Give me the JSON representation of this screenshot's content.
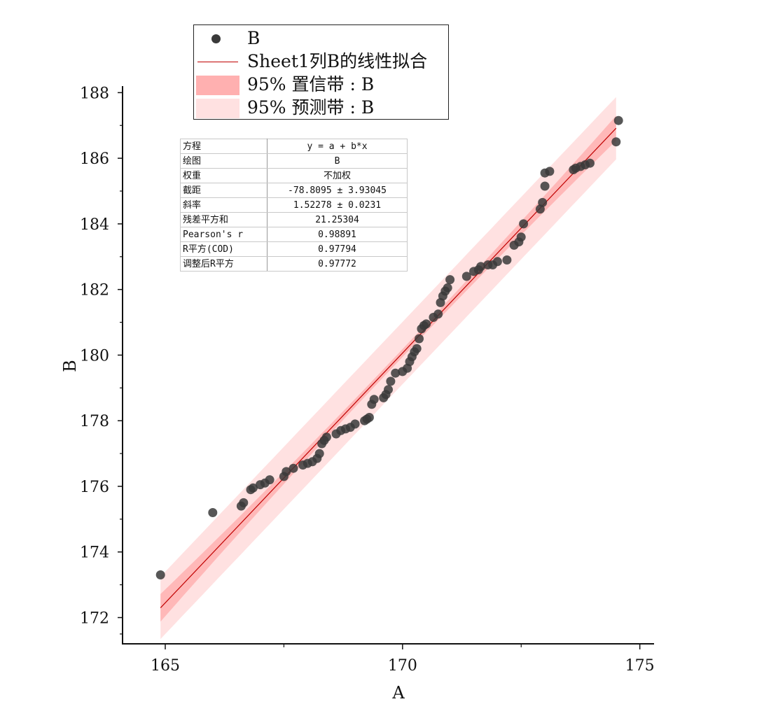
{
  "legend": {
    "items": [
      {
        "label": "B",
        "kind": "scatter",
        "color": "#3a3a3a"
      },
      {
        "label": "Sheet1列B的线性拟合",
        "kind": "line",
        "color": "#c00000"
      },
      {
        "label": "95% 置信带 : B",
        "kind": "band",
        "color": "#ffb0b0"
      },
      {
        "label": "95% 预测带 : B",
        "kind": "band",
        "color": "#ffe1e1"
      }
    ]
  },
  "stats_table": {
    "rows": [
      {
        "key": "方程",
        "value": "y = a + b*x"
      },
      {
        "key": "绘图",
        "value": "B"
      },
      {
        "key": "权重",
        "value": "不加权"
      },
      {
        "key": "截距",
        "value": "-78.8095 ± 3.93045"
      },
      {
        "key": "斜率",
        "value": "1.52278 ± 0.0231"
      },
      {
        "key": "残差平方和",
        "value": "21.25304"
      },
      {
        "key": "Pearson's r",
        "value": "0.98891"
      },
      {
        "key": "R平方(COD)",
        "value": "0.97794"
      },
      {
        "key": "调整后R平方",
        "value": "0.97772"
      }
    ]
  },
  "chart_data": {
    "type": "scatter",
    "xlabel": "A",
    "ylabel": "B",
    "xlim": [
      164.1,
      175.3
    ],
    "ylim": [
      171.2,
      188.2
    ],
    "xticks": [
      165,
      170,
      175
    ],
    "yticks": [
      172,
      174,
      176,
      178,
      180,
      182,
      184,
      186,
      188
    ],
    "fit": {
      "intercept": -78.8095,
      "slope": 1.52278,
      "x_range": [
        164.9,
        174.5
      ]
    },
    "confidence_band_halfwidth": {
      "start": 0.42,
      "mid": 0.12,
      "end": 0.38
    },
    "prediction_band_halfwidth": 0.95,
    "colors": {
      "points": "#3a3a3a",
      "fit": "#c00000",
      "conf": "#ffb0b0",
      "pred": "#ffe1e1"
    },
    "series": [
      {
        "name": "B",
        "points": [
          [
            164.9,
            173.3
          ],
          [
            166.0,
            175.2
          ],
          [
            166.6,
            175.4
          ],
          [
            166.65,
            175.5
          ],
          [
            166.8,
            175.9
          ],
          [
            166.85,
            175.95
          ],
          [
            167.0,
            176.05
          ],
          [
            167.1,
            176.1
          ],
          [
            167.2,
            176.2
          ],
          [
            167.5,
            176.3
          ],
          [
            167.55,
            176.45
          ],
          [
            167.7,
            176.55
          ],
          [
            167.9,
            176.65
          ],
          [
            168.0,
            176.7
          ],
          [
            168.1,
            176.75
          ],
          [
            168.2,
            176.85
          ],
          [
            168.25,
            177.0
          ],
          [
            168.3,
            177.3
          ],
          [
            168.35,
            177.4
          ],
          [
            168.4,
            177.5
          ],
          [
            168.6,
            177.6
          ],
          [
            168.7,
            177.7
          ],
          [
            168.8,
            177.75
          ],
          [
            168.9,
            177.8
          ],
          [
            169.0,
            177.9
          ],
          [
            169.2,
            178.0
          ],
          [
            169.25,
            178.05
          ],
          [
            169.3,
            178.1
          ],
          [
            169.35,
            178.5
          ],
          [
            169.4,
            178.65
          ],
          [
            169.6,
            178.7
          ],
          [
            169.65,
            178.8
          ],
          [
            169.7,
            178.95
          ],
          [
            169.75,
            179.2
          ],
          [
            169.85,
            179.45
          ],
          [
            170.0,
            179.5
          ],
          [
            170.1,
            179.6
          ],
          [
            170.15,
            179.8
          ],
          [
            170.2,
            179.95
          ],
          [
            170.25,
            180.1
          ],
          [
            170.3,
            180.2
          ],
          [
            170.35,
            180.5
          ],
          [
            170.4,
            180.8
          ],
          [
            170.45,
            180.9
          ],
          [
            170.5,
            180.95
          ],
          [
            170.65,
            181.15
          ],
          [
            170.75,
            181.25
          ],
          [
            170.8,
            181.6
          ],
          [
            170.85,
            181.8
          ],
          [
            170.9,
            181.95
          ],
          [
            170.95,
            182.05
          ],
          [
            171.0,
            182.3
          ],
          [
            171.35,
            182.4
          ],
          [
            171.5,
            182.55
          ],
          [
            171.6,
            182.6
          ],
          [
            171.65,
            182.7
          ],
          [
            171.8,
            182.75
          ],
          [
            171.9,
            182.75
          ],
          [
            172.0,
            182.85
          ],
          [
            172.2,
            182.9
          ],
          [
            172.35,
            183.35
          ],
          [
            172.45,
            183.45
          ],
          [
            172.5,
            183.6
          ],
          [
            172.55,
            184.0
          ],
          [
            172.9,
            184.45
          ],
          [
            172.95,
            184.65
          ],
          [
            173.0,
            185.15
          ],
          [
            173.0,
            185.55
          ],
          [
            173.1,
            185.6
          ],
          [
            173.6,
            185.65
          ],
          [
            173.65,
            185.7
          ],
          [
            173.75,
            185.75
          ],
          [
            173.85,
            185.8
          ],
          [
            173.95,
            185.85
          ],
          [
            174.5,
            186.5
          ],
          [
            174.55,
            187.15
          ]
        ]
      }
    ]
  }
}
